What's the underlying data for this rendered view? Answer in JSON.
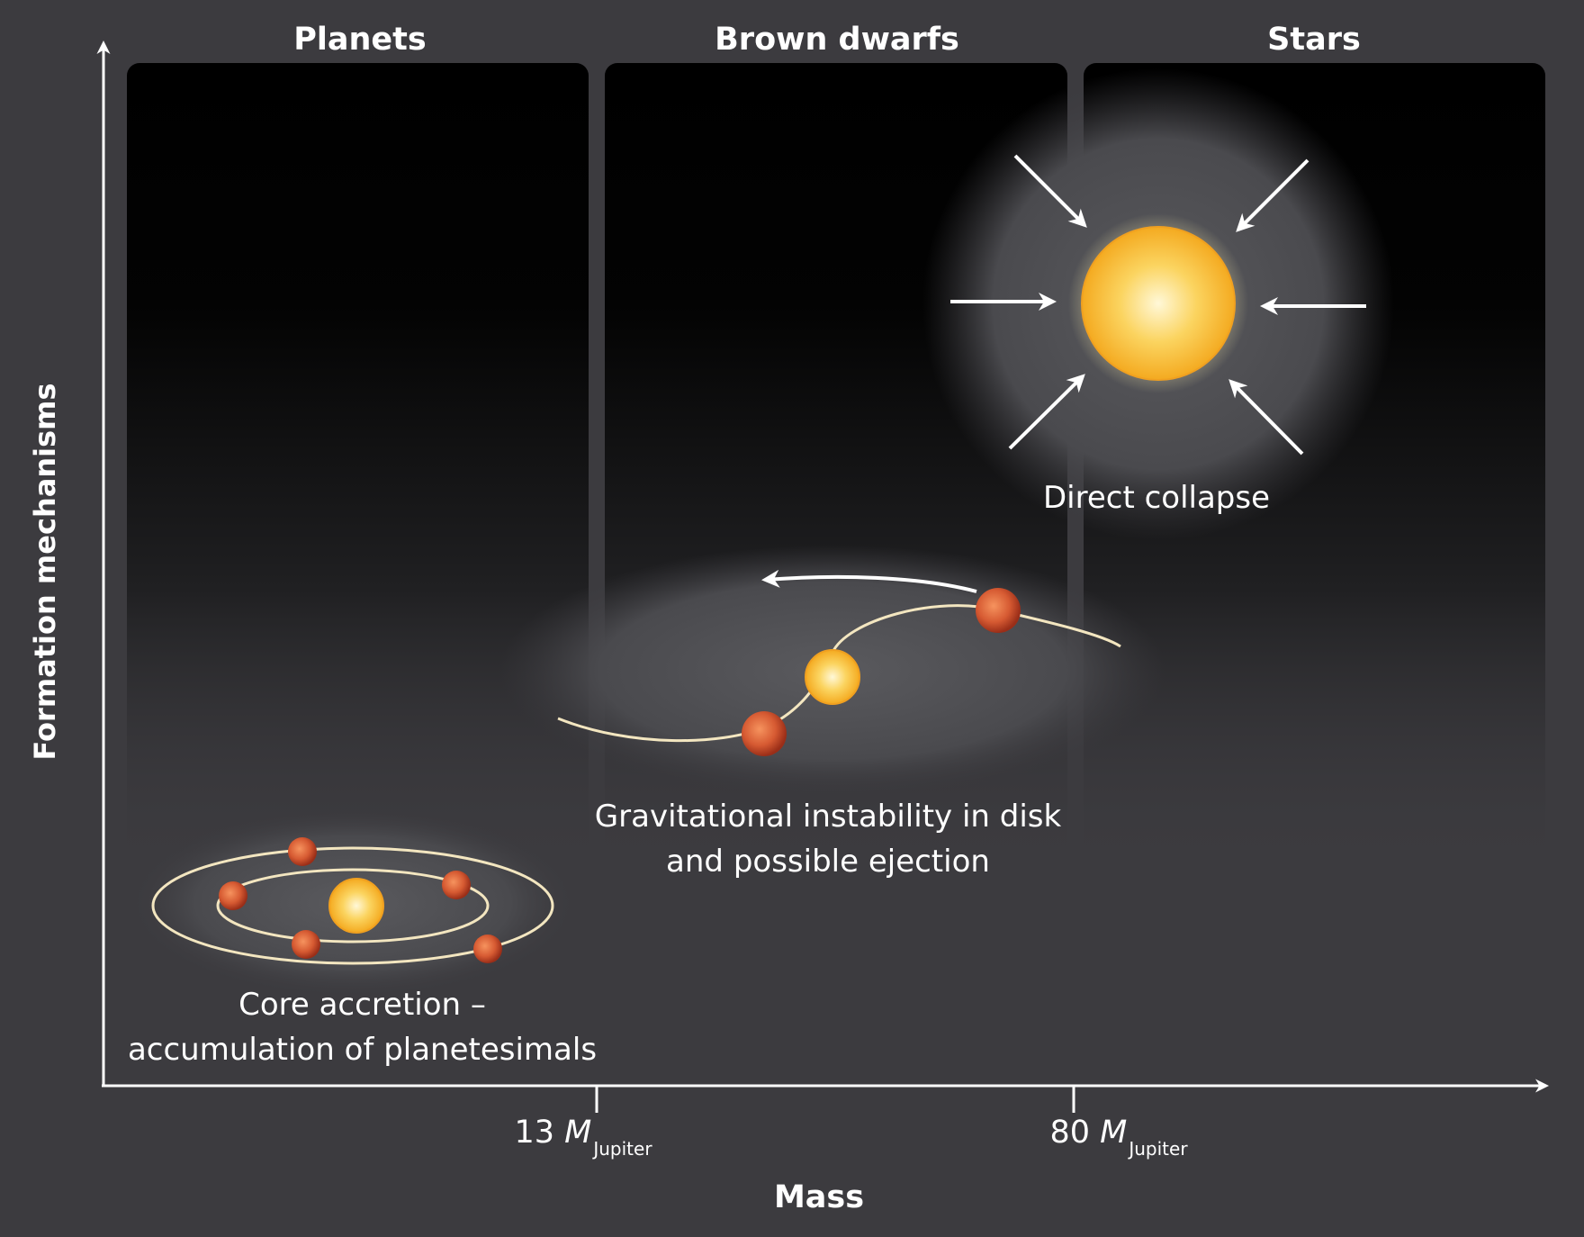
{
  "columns": {
    "planets": "Planets",
    "brown_dwarfs": "Brown dwarfs",
    "stars": "Stars"
  },
  "axes": {
    "y_label": "Formation mechanisms",
    "x_label": "Mass",
    "tick_13": {
      "value": "13",
      "symbol": "M",
      "subscript": "Jupiter"
    },
    "tick_80": {
      "value": "80",
      "symbol": "M",
      "subscript": "Jupiter"
    }
  },
  "captions": {
    "core_line1": "Core accretion –",
    "core_line2": "accumulation of planetesimals",
    "grav_line1": "Gravitational instability in disk",
    "grav_line2": "and possible ejection",
    "direct": "Direct collapse"
  },
  "colors": {
    "background": "#3c3b3f",
    "panel_top": "#000000",
    "star_core": "#fff6c8",
    "star_edge": "#f5b32a",
    "planet_core": "#f07a4e",
    "planet_edge": "#b03a1e",
    "orbit": "#f3e6c0"
  }
}
